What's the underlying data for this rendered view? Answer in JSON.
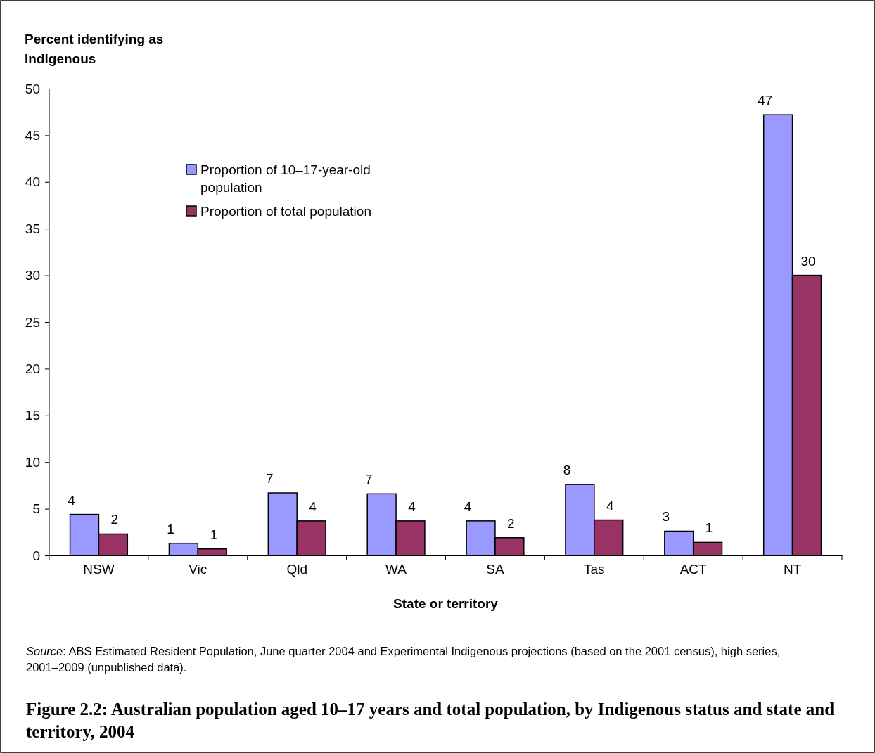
{
  "chart_data": {
    "type": "bar",
    "title": "Figure 2.2: Australian population aged 10–17 years and total population, by Indigenous status and state and territory, 2004",
    "xlabel": "State or territory",
    "ylabel": "Percent identifying as Indigenous",
    "categories": [
      "NSW",
      "Vic",
      "Qld",
      "WA",
      "SA",
      "Tas",
      "ACT",
      "NT"
    ],
    "series": [
      {
        "name": "Proportion of 10–17-year-old population",
        "color": "#9999ff",
        "values": [
          4.4,
          1.3,
          6.7,
          6.6,
          3.7,
          7.6,
          2.6,
          47.2
        ],
        "value_labels": [
          "4",
          "1",
          "7",
          "7",
          "4",
          "8",
          "3",
          "47"
        ]
      },
      {
        "name": "Proportion of total population",
        "color": "#993366",
        "values": [
          2.3,
          0.7,
          3.7,
          3.7,
          1.9,
          3.8,
          1.4,
          30.0
        ],
        "value_labels": [
          "2",
          "1",
          "4",
          "4",
          "2",
          "4",
          "1",
          "30"
        ]
      }
    ],
    "ylim": [
      0,
      50
    ],
    "yticks": [
      0,
      5,
      10,
      15,
      20,
      25,
      30,
      35,
      40,
      45,
      50
    ],
    "grid": false,
    "legend": "top left",
    "annotations": [
      "Source: ABS Estimated Resident Population, June quarter 2004 and Experimental Indigenous projections (based on the 2001 census), high series, 2001–2009 (unpublished data)."
    ]
  }
}
